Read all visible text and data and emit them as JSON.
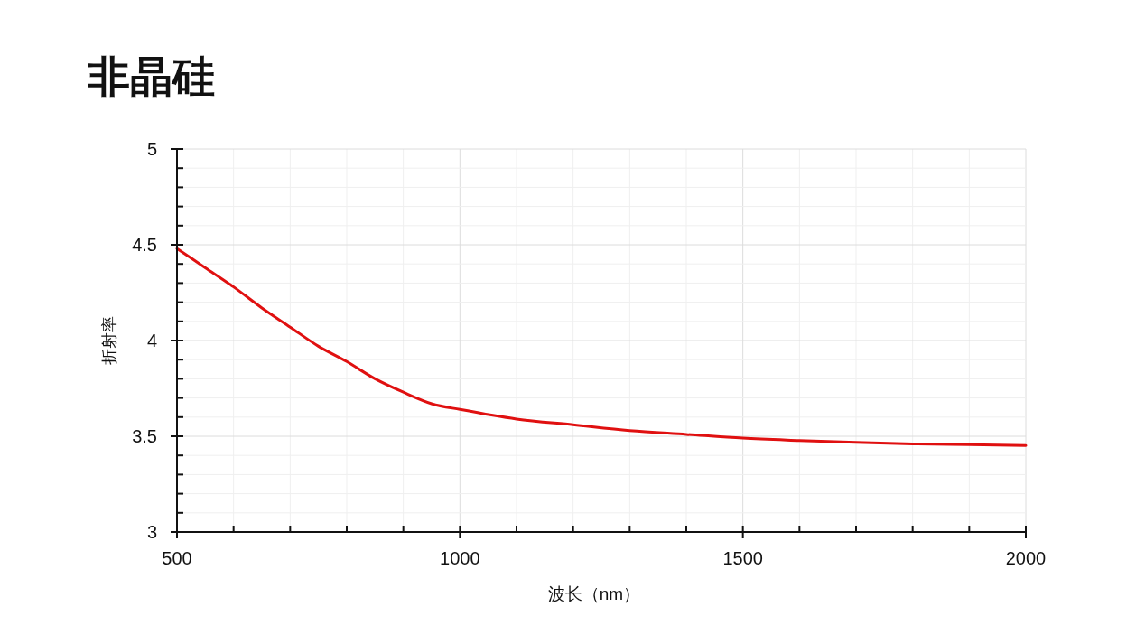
{
  "chart_data": {
    "type": "line",
    "title": "非晶硅",
    "xlabel": "波长（nm）",
    "ylabel": "折射率",
    "x": [
      500,
      550,
      600,
      650,
      700,
      750,
      800,
      850,
      900,
      950,
      1000,
      1100,
      1200,
      1300,
      1400,
      1500,
      1600,
      1700,
      1800,
      1900,
      2000
    ],
    "series": [
      {
        "color": "#e01010",
        "values": [
          4.48,
          4.38,
          4.28,
          4.17,
          4.07,
          3.97,
          3.89,
          3.8,
          3.73,
          3.67,
          3.64,
          3.59,
          3.56,
          3.53,
          3.51,
          3.49,
          3.478,
          3.468,
          3.46,
          3.456,
          3.452
        ]
      }
    ],
    "xlim": [
      500,
      2000
    ],
    "ylim": [
      3,
      5
    ],
    "xticks": [
      500,
      {
        "value": 600,
        "label": null
      },
      {
        "value": 700,
        "label": null
      },
      {
        "value": 800,
        "label": null
      },
      {
        "value": 900,
        "label": null
      },
      1000,
      {
        "value": 1100,
        "label": null
      },
      {
        "value": 1200,
        "label": null
      },
      {
        "value": 1300,
        "label": null
      },
      {
        "value": 1400,
        "label": null
      },
      1500,
      {
        "value": 1600,
        "label": null
      },
      {
        "value": 1700,
        "label": null
      },
      {
        "value": 1800,
        "label": null
      },
      {
        "value": 1900,
        "label": null
      },
      2000
    ],
    "yticks": [
      3,
      {
        "value": 3.1,
        "label": null
      },
      {
        "value": 3.2,
        "label": null
      },
      {
        "value": 3.3,
        "label": null
      },
      {
        "value": 3.4,
        "label": null
      },
      3.5,
      {
        "value": 3.6,
        "label": null
      },
      {
        "value": 3.7,
        "label": null
      },
      {
        "value": 3.8,
        "label": null
      },
      {
        "value": 3.9,
        "label": null
      },
      4,
      {
        "value": 4.1,
        "label": null
      },
      {
        "value": 4.2,
        "label": null
      },
      {
        "value": 4.3,
        "label": null
      },
      {
        "value": 4.4,
        "label": null
      },
      4.5,
      {
        "value": 4.6,
        "label": null
      },
      {
        "value": 4.7,
        "label": null
      },
      {
        "value": 4.8,
        "label": null
      },
      {
        "value": 4.9,
        "label": null
      },
      5
    ],
    "grid": true,
    "line_style": "solid"
  }
}
